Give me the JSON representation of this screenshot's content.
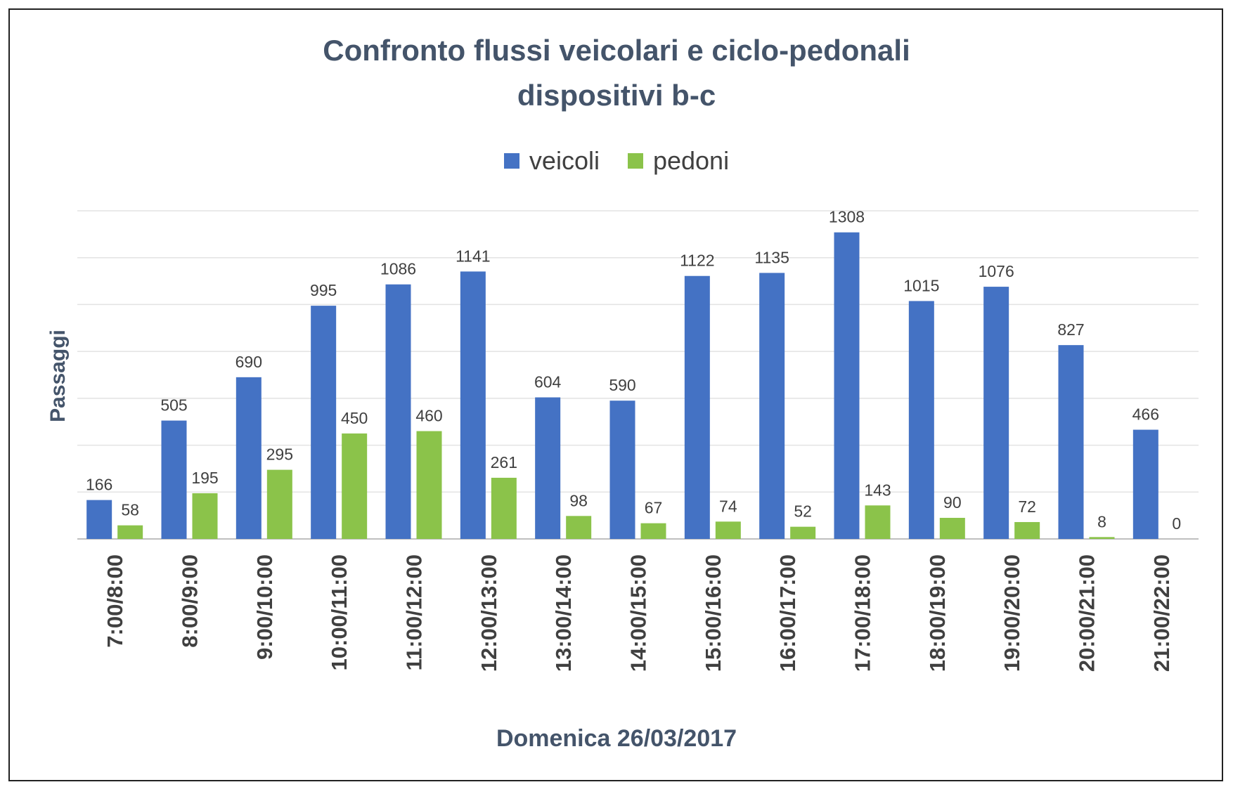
{
  "chart_data": {
    "type": "bar",
    "title": "Confronto flussi veicolari e ciclo-pedonali",
    "subtitle": "dispositivi b-c",
    "xlabel": "Domenica 26/03/2017",
    "ylabel": "Passaggi",
    "categories": [
      "7:00/8:00",
      "8:00/9:00",
      "9:00/10:00",
      "10:00/11:00",
      "11:00/12:00",
      "12:00/13:00",
      "13:00/14:00",
      "14:00/15:00",
      "15:00/16:00",
      "16:00/17:00",
      "17:00/18:00",
      "18:00/19:00",
      "19:00/20:00",
      "20:00/21:00",
      "21:00/22:00"
    ],
    "series": [
      {
        "name": "veicoli",
        "color": "#4472c4",
        "values": [
          166,
          505,
          690,
          995,
          1086,
          1141,
          604,
          590,
          1122,
          1135,
          1308,
          1015,
          1076,
          827,
          466
        ]
      },
      {
        "name": "pedoni",
        "color": "#8bc34a",
        "values": [
          58,
          195,
          295,
          450,
          460,
          261,
          98,
          67,
          74,
          52,
          143,
          90,
          72,
          8,
          0
        ]
      }
    ],
    "ylim": [
      0,
      1400
    ],
    "grid": true,
    "legend_position": "top"
  }
}
